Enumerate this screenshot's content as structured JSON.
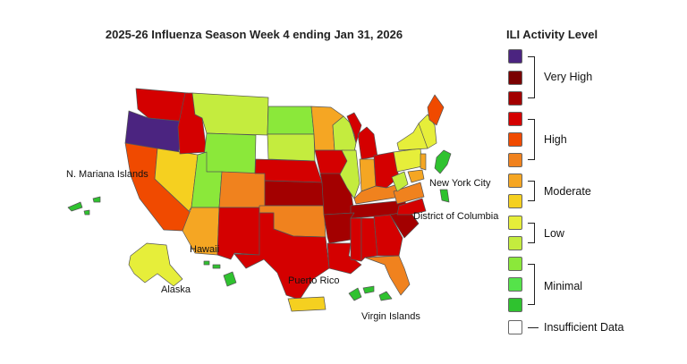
{
  "title": "2025-26 Influenza Season Week 4 ending Jan 31, 2026",
  "legend": {
    "title": "ILI Activity Level",
    "swatch_colors": [
      "#4b2480",
      "#7a0000",
      "#a30000",
      "#d40000",
      "#f04a00",
      "#f0821e",
      "#f5a623",
      "#f5d020",
      "#e6ee3a",
      "#c4ec3e",
      "#8be83a",
      "#55e34a",
      "#2fc22f",
      "#ffffff"
    ],
    "groups": {
      "very_high": "Very High",
      "high": "High",
      "moderate": "Moderate",
      "low": "Low",
      "minimal": "Minimal",
      "insufficient": "Insufficient Data"
    }
  },
  "territory_labels": {
    "n_mariana": "N. Mariana Islands",
    "hawaii": "Hawaii",
    "alaska": "Alaska",
    "puerto_rico": "Puerto Rico",
    "virgin_islands": "Virgin Islands",
    "new_york_city": "New York City",
    "dc": "District of Columbia"
  },
  "region_levels": {
    "OR": "Very High",
    "WA": "High",
    "ID": "High",
    "MT": "Low",
    "ND": "Minimal",
    "MN": "Moderate",
    "WI": "Low",
    "MI": "High",
    "CA": "High",
    "NV": "Moderate",
    "UT": "Minimal",
    "WY": "Minimal",
    "SD": "Low",
    "NE": "High",
    "IA": "High",
    "IL": "Low",
    "IN": "Moderate",
    "OH": "High",
    "AZ": "Moderate",
    "CO": "High",
    "KS": "Very High",
    "MO": "Very High",
    "KY": "High",
    "NM": "High",
    "OK": "High",
    "AR": "Very High",
    "TN": "Very High",
    "TX": "High",
    "LA": "High",
    "MS": "High",
    "AL": "High",
    "GA": "High",
    "SC": "Very High",
    "NC": "High",
    "VA": "High",
    "WV": "Low",
    "PA": "Low",
    "NY": "Low",
    "ME": "High",
    "FL": "High",
    "AK": "Low",
    "HI": "Minimal",
    "PR": "Moderate",
    "VI": "Minimal",
    "MP": "Minimal",
    "NYC": "Minimal",
    "DC": "Minimal"
  }
}
